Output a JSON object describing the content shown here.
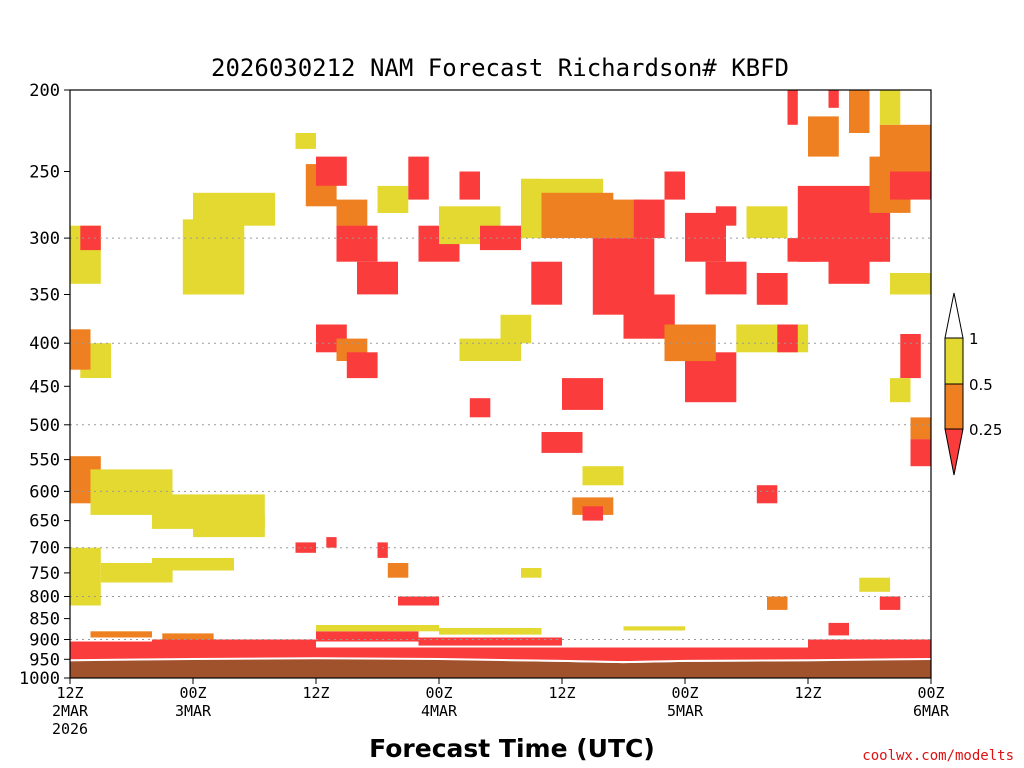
{
  "chart_data": {
    "type": "heatmap",
    "title": "2026030212 NAM Forecast Richardson# KBFD",
    "xlabel": "Forecast Time (UTC)",
    "ylabel": "",
    "y_scale": "log-pressure",
    "ylim": [
      1000,
      200
    ],
    "y_ticks": [
      200,
      250,
      300,
      350,
      400,
      450,
      500,
      550,
      600,
      650,
      700,
      750,
      800,
      850,
      900,
      950,
      1000
    ],
    "y_gridlines": [
      300,
      400,
      500,
      600,
      700,
      800,
      900,
      1000
    ],
    "xlim_hours": [
      0,
      84
    ],
    "x_ticks": [
      {
        "hour": 0,
        "line1": "12Z",
        "line2": "2MAR",
        "line3": "2026"
      },
      {
        "hour": 12,
        "line1": "00Z",
        "line2": "3MAR",
        "line3": ""
      },
      {
        "hour": 24,
        "line1": "12Z",
        "line2": "",
        "line3": ""
      },
      {
        "hour": 36,
        "line1": "00Z",
        "line2": "4MAR",
        "line3": ""
      },
      {
        "hour": 48,
        "line1": "12Z",
        "line2": "",
        "line3": ""
      },
      {
        "hour": 60,
        "line1": "00Z",
        "line2": "5MAR",
        "line3": ""
      },
      {
        "hour": 72,
        "line1": "12Z",
        "line2": "",
        "line3": ""
      },
      {
        "hour": 84,
        "line1": "00Z",
        "line2": "6MAR",
        "line3": ""
      }
    ],
    "legend": {
      "placement": "right",
      "labels": [
        "1",
        "0.5",
        "0.25"
      ],
      "classes": [
        {
          "name": "ge1",
          "color": "#ffffff",
          "range": "> 1"
        },
        {
          "name": "mid-high",
          "color": "#e3d930",
          "range": "0.5 - 1"
        },
        {
          "name": "mid-low",
          "color": "#ee8022",
          "range": "0.25 - 0.5"
        },
        {
          "name": "low",
          "color": "#fa3c3c",
          "range": "< 0.25"
        }
      ]
    },
    "ground_color": "#a0522d",
    "ground_top_hpa_by_hour": [
      [
        0,
        955
      ],
      [
        12,
        952
      ],
      [
        24,
        950
      ],
      [
        36,
        952
      ],
      [
        48,
        957
      ],
      [
        54,
        960
      ],
      [
        60,
        957
      ],
      [
        72,
        955
      ],
      [
        84,
        952
      ]
    ],
    "cells": [
      {
        "t0": 0,
        "t1": 84,
        "p0": 920,
        "p1": 955,
        "class": "low"
      },
      {
        "t0": 0,
        "t1": 8,
        "p0": 905,
        "p1": 925,
        "class": "low"
      },
      {
        "t0": 8,
        "t1": 24,
        "p0": 900,
        "p1": 920,
        "class": "low"
      },
      {
        "t0": 24,
        "t1": 34,
        "p0": 880,
        "p1": 905,
        "class": "low"
      },
      {
        "t0": 34,
        "t1": 48,
        "p0": 895,
        "p1": 915,
        "class": "low"
      },
      {
        "t0": 72,
        "t1": 84,
        "p0": 900,
        "p1": 925,
        "class": "low"
      },
      {
        "t0": 24,
        "t1": 36,
        "p0": 865,
        "p1": 880,
        "class": "mid-high"
      },
      {
        "t0": 36,
        "t1": 46,
        "p0": 872,
        "p1": 888,
        "class": "mid-high"
      },
      {
        "t0": 54,
        "t1": 60,
        "p0": 868,
        "p1": 878,
        "class": "mid-high"
      },
      {
        "t0": 2,
        "t1": 8,
        "p0": 880,
        "p1": 895,
        "class": "mid-low"
      },
      {
        "t0": 9,
        "t1": 14,
        "p0": 885,
        "p1": 900,
        "class": "mid-low"
      },
      {
        "t0": 0,
        "t1": 3,
        "p0": 700,
        "p1": 820,
        "class": "mid-high"
      },
      {
        "t0": 3,
        "t1": 10,
        "p0": 730,
        "p1": 770,
        "class": "mid-high"
      },
      {
        "t0": 8,
        "t1": 16,
        "p0": 720,
        "p1": 745,
        "class": "mid-high"
      },
      {
        "t0": 0,
        "t1": 3,
        "p0": 545,
        "p1": 620,
        "class": "mid-low"
      },
      {
        "t0": 2,
        "t1": 10,
        "p0": 565,
        "p1": 640,
        "class": "mid-high"
      },
      {
        "t0": 8,
        "t1": 19,
        "p0": 605,
        "p1": 665,
        "class": "mid-high"
      },
      {
        "t0": 12,
        "t1": 19,
        "p0": 640,
        "p1": 680,
        "class": "mid-high"
      },
      {
        "t0": 1,
        "t1": 4,
        "p0": 400,
        "p1": 440,
        "class": "mid-high"
      },
      {
        "t0": 0,
        "t1": 2,
        "p0": 385,
        "p1": 430,
        "class": "mid-low"
      },
      {
        "t0": 0,
        "t1": 3,
        "p0": 290,
        "p1": 340,
        "class": "mid-high"
      },
      {
        "t0": 1,
        "t1": 3,
        "p0": 290,
        "p1": 310,
        "class": "low"
      },
      {
        "t0": 11,
        "t1": 17,
        "p0": 285,
        "p1": 350,
        "class": "mid-high"
      },
      {
        "t0": 12,
        "t1": 20,
        "p0": 265,
        "p1": 290,
        "class": "mid-high"
      },
      {
        "t0": 22,
        "t1": 24,
        "p0": 225,
        "p1": 235,
        "class": "mid-high"
      },
      {
        "t0": 23,
        "t1": 26,
        "p0": 245,
        "p1": 275,
        "class": "mid-low"
      },
      {
        "t0": 24,
        "t1": 27,
        "p0": 240,
        "p1": 260,
        "class": "low"
      },
      {
        "t0": 26,
        "t1": 29,
        "p0": 270,
        "p1": 300,
        "class": "mid-low"
      },
      {
        "t0": 26,
        "t1": 30,
        "p0": 290,
        "p1": 320,
        "class": "low"
      },
      {
        "t0": 28,
        "t1": 32,
        "p0": 320,
        "p1": 350,
        "class": "low"
      },
      {
        "t0": 30,
        "t1": 33,
        "p0": 260,
        "p1": 280,
        "class": "mid-high"
      },
      {
        "t0": 33,
        "t1": 35,
        "p0": 240,
        "p1": 270,
        "class": "low"
      },
      {
        "t0": 34,
        "t1": 38,
        "p0": 290,
        "p1": 320,
        "class": "low"
      },
      {
        "t0": 36,
        "t1": 42,
        "p0": 275,
        "p1": 305,
        "class": "mid-high"
      },
      {
        "t0": 38,
        "t1": 40,
        "p0": 250,
        "p1": 270,
        "class": "low"
      },
      {
        "t0": 40,
        "t1": 44,
        "p0": 290,
        "p1": 310,
        "class": "low"
      },
      {
        "t0": 44,
        "t1": 46,
        "p0": 255,
        "p1": 300,
        "class": "mid-high"
      },
      {
        "t0": 44,
        "t1": 52,
        "p0": 255,
        "p1": 270,
        "class": "mid-high"
      },
      {
        "t0": 46,
        "t1": 53,
        "p0": 265,
        "p1": 300,
        "class": "mid-low"
      },
      {
        "t0": 50,
        "t1": 56,
        "p0": 270,
        "p1": 300,
        "class": "mid-low"
      },
      {
        "t0": 51,
        "t1": 57,
        "p0": 300,
        "p1": 370,
        "class": "low"
      },
      {
        "t0": 54,
        "t1": 59,
        "p0": 350,
        "p1": 395,
        "class": "low"
      },
      {
        "t0": 55,
        "t1": 58,
        "p0": 270,
        "p1": 300,
        "class": "low"
      },
      {
        "t0": 58,
        "t1": 60,
        "p0": 250,
        "p1": 270,
        "class": "low"
      },
      {
        "t0": 60,
        "t1": 64,
        "p0": 280,
        "p1": 320,
        "class": "low"
      },
      {
        "t0": 63,
        "t1": 65,
        "p0": 275,
        "p1": 290,
        "class": "low"
      },
      {
        "t0": 62,
        "t1": 66,
        "p0": 320,
        "p1": 350,
        "class": "low"
      },
      {
        "t0": 66,
        "t1": 70,
        "p0": 275,
        "p1": 300,
        "class": "mid-high"
      },
      {
        "t0": 67,
        "t1": 70,
        "p0": 330,
        "p1": 360,
        "class": "low"
      },
      {
        "t0": 70,
        "t1": 73,
        "p0": 300,
        "p1": 320,
        "class": "low"
      },
      {
        "t0": 70,
        "t1": 71,
        "p0": 200,
        "p1": 220,
        "class": "low"
      },
      {
        "t0": 71,
        "t1": 80,
        "p0": 260,
        "p1": 320,
        "class": "low"
      },
      {
        "t0": 72,
        "t1": 75,
        "p0": 215,
        "p1": 240,
        "class": "mid-low"
      },
      {
        "t0": 74,
        "t1": 75,
        "p0": 200,
        "p1": 210,
        "class": "low"
      },
      {
        "t0": 74,
        "t1": 78,
        "p0": 300,
        "p1": 340,
        "class": "low"
      },
      {
        "t0": 76,
        "t1": 78,
        "p0": 200,
        "p1": 225,
        "class": "mid-low"
      },
      {
        "t0": 78,
        "t1": 82,
        "p0": 240,
        "p1": 280,
        "class": "mid-low"
      },
      {
        "t0": 79,
        "t1": 84,
        "p0": 220,
        "p1": 250,
        "class": "mid-low"
      },
      {
        "t0": 80,
        "t1": 84,
        "p0": 250,
        "p1": 270,
        "class": "low"
      },
      {
        "t0": 79,
        "t1": 81,
        "p0": 200,
        "p1": 220,
        "class": "mid-high"
      },
      {
        "t0": 80,
        "t1": 84,
        "p0": 330,
        "p1": 350,
        "class": "mid-high"
      },
      {
        "t0": 81,
        "t1": 83,
        "p0": 390,
        "p1": 440,
        "class": "low"
      },
      {
        "t0": 82,
        "t1": 84,
        "p0": 520,
        "p1": 560,
        "class": "low"
      },
      {
        "t0": 82,
        "t1": 84,
        "p0": 490,
        "p1": 520,
        "class": "mid-low"
      },
      {
        "t0": 80,
        "t1": 82,
        "p0": 440,
        "p1": 470,
        "class": "mid-high"
      },
      {
        "t0": 65,
        "t1": 72,
        "p0": 380,
        "p1": 410,
        "class": "mid-high"
      },
      {
        "t0": 69,
        "t1": 71,
        "p0": 380,
        "p1": 410,
        "class": "low"
      },
      {
        "t0": 60,
        "t1": 65,
        "p0": 410,
        "p1": 470,
        "class": "low"
      },
      {
        "t0": 58,
        "t1": 63,
        "p0": 380,
        "p1": 420,
        "class": "mid-low"
      },
      {
        "t0": 48,
        "t1": 52,
        "p0": 440,
        "p1": 480,
        "class": "low"
      },
      {
        "t0": 46,
        "t1": 50,
        "p0": 510,
        "p1": 540,
        "class": "low"
      },
      {
        "t0": 50,
        "t1": 54,
        "p0": 560,
        "p1": 590,
        "class": "mid-high"
      },
      {
        "t0": 49,
        "t1": 53,
        "p0": 610,
        "p1": 640,
        "class": "mid-low"
      },
      {
        "t0": 50,
        "t1": 52,
        "p0": 625,
        "p1": 650,
        "class": "low"
      },
      {
        "t0": 39,
        "t1": 41,
        "p0": 465,
        "p1": 490,
        "class": "low"
      },
      {
        "t0": 38,
        "t1": 44,
        "p0": 395,
        "p1": 420,
        "class": "mid-high"
      },
      {
        "t0": 45,
        "t1": 48,
        "p0": 320,
        "p1": 360,
        "class": "low"
      },
      {
        "t0": 42,
        "t1": 45,
        "p0": 370,
        "p1": 400,
        "class": "mid-high"
      },
      {
        "t0": 24,
        "t1": 27,
        "p0": 380,
        "p1": 410,
        "class": "low"
      },
      {
        "t0": 26,
        "t1": 29,
        "p0": 395,
        "p1": 420,
        "class": "mid-low"
      },
      {
        "t0": 27,
        "t1": 30,
        "p0": 410,
        "p1": 440,
        "class": "low"
      },
      {
        "t0": 22,
        "t1": 24,
        "p0": 690,
        "p1": 710,
        "class": "low"
      },
      {
        "t0": 25,
        "t1": 26,
        "p0": 680,
        "p1": 700,
        "class": "low"
      },
      {
        "t0": 30,
        "t1": 31,
        "p0": 690,
        "p1": 720,
        "class": "low"
      },
      {
        "t0": 31,
        "t1": 33,
        "p0": 730,
        "p1": 760,
        "class": "mid-low"
      },
      {
        "t0": 32,
        "t1": 36,
        "p0": 800,
        "p1": 820,
        "class": "low"
      },
      {
        "t0": 44,
        "t1": 46,
        "p0": 740,
        "p1": 760,
        "class": "mid-high"
      },
      {
        "t0": 67,
        "t1": 69,
        "p0": 590,
        "p1": 620,
        "class": "low"
      },
      {
        "t0": 68,
        "t1": 70,
        "p0": 800,
        "p1": 830,
        "class": "mid-low"
      },
      {
        "t0": 74,
        "t1": 76,
        "p0": 860,
        "p1": 890,
        "class": "low"
      },
      {
        "t0": 77,
        "t1": 80,
        "p0": 760,
        "p1": 790,
        "class": "mid-high"
      },
      {
        "t0": 79,
        "t1": 81,
        "p0": 800,
        "p1": 830,
        "class": "low"
      }
    ]
  },
  "credit": "coolwx.com/modelts"
}
